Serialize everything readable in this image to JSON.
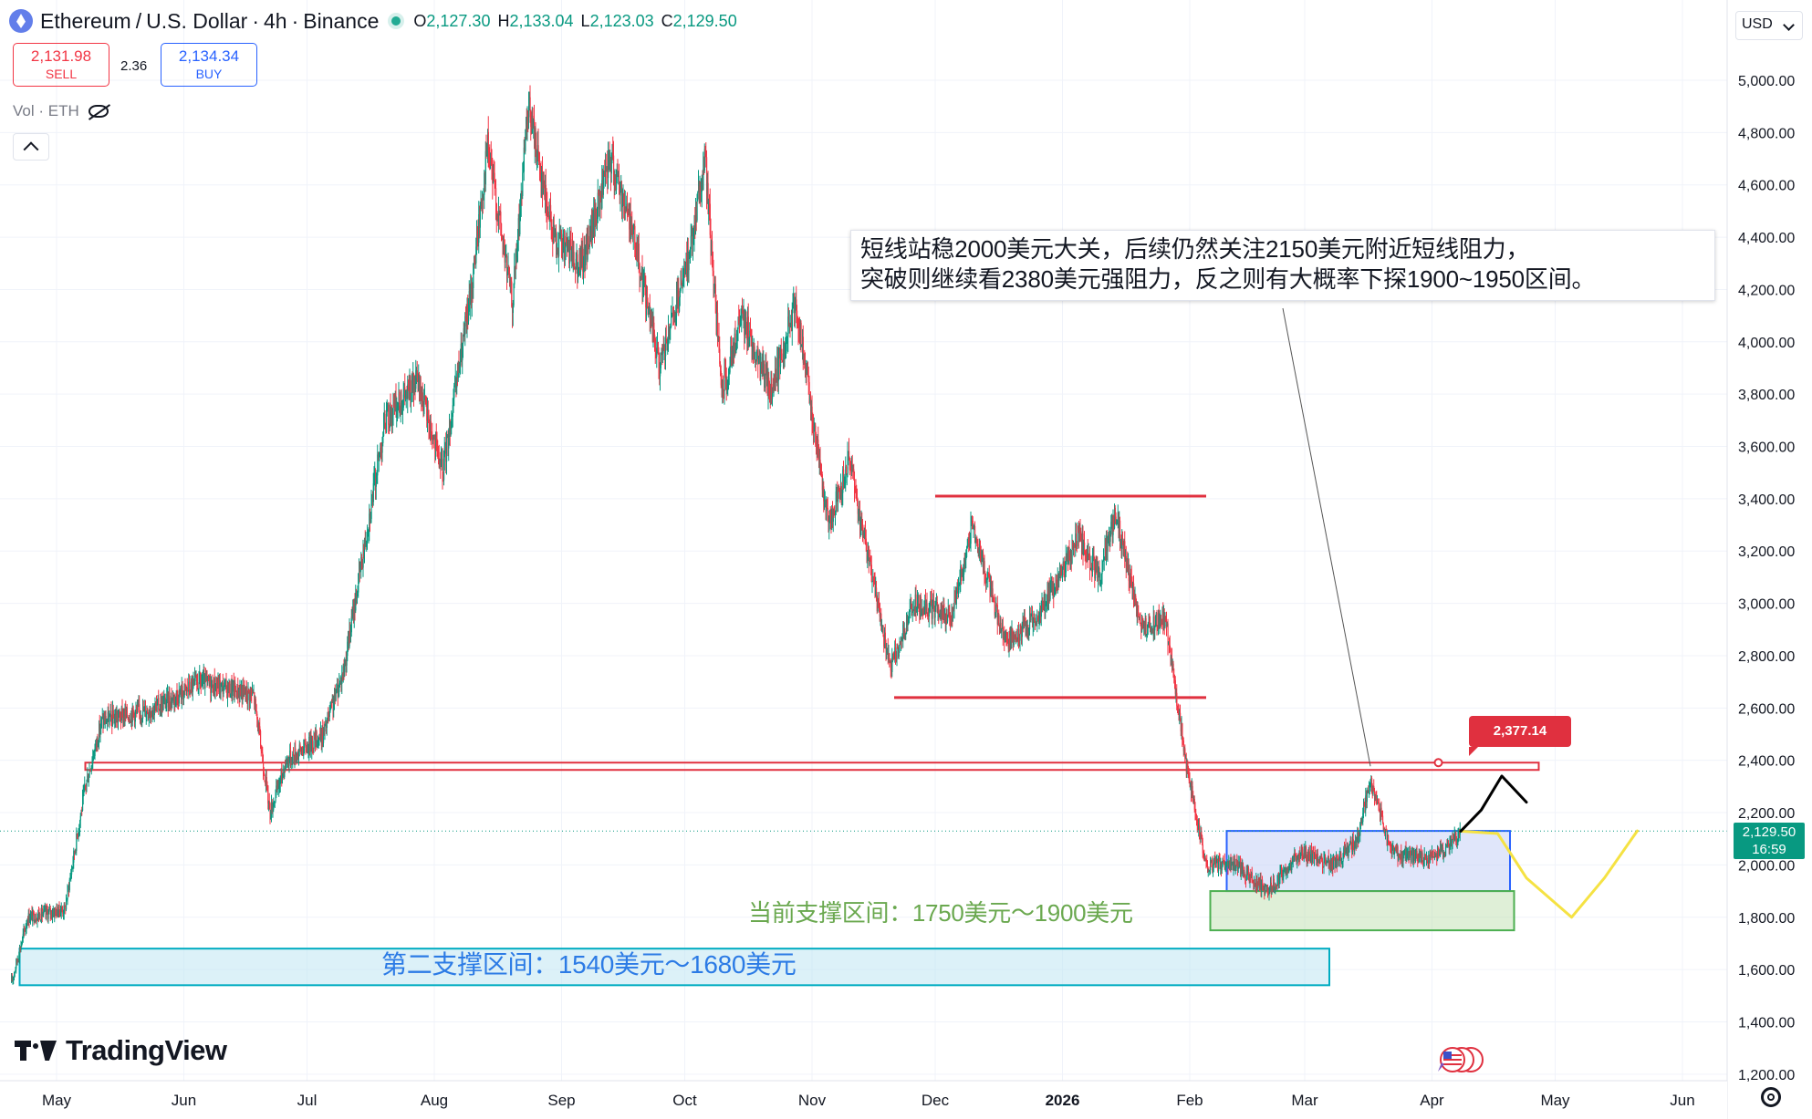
{
  "header": {
    "symbol": "Ethereum",
    "quote": "U.S. Dollar",
    "interval": "4h",
    "exchange": "Binance",
    "ohlc": {
      "o_label": "O",
      "o": "2,127.30",
      "h_label": "H",
      "h": "2,133.04",
      "l_label": "L",
      "l": "2,123.03",
      "c_label": "C",
      "c": "2,129.50"
    }
  },
  "trade": {
    "sell_price": "2,131.98",
    "sell_label": "SELL",
    "spread": "2.36",
    "buy_price": "2,134.34",
    "buy_label": "BUY"
  },
  "volume_legend": "Vol · ETH",
  "currency": "USD",
  "current_price": {
    "value": "2,129.50",
    "countdown": "16:59",
    "color": "#089981"
  },
  "brand": "TradingView",
  "annotations": {
    "note_line1": "短线站稳2000美元大关，后续仍然关注2150美元附近短线阻力，",
    "note_line2": "突破则继续看2380美元强阻力，反之则有大概率下探1900~1950区间。",
    "callout": "2,377.14",
    "support1": "当前支撑区间：1750美元～1900美元",
    "support2": "第二支撑区间：1540美元～1680美元"
  },
  "colors": {
    "up": "#089981",
    "down": "#f23645",
    "resistance": "#e0303f",
    "support1_zone": "#b7dba6",
    "support2_zone": "#bfe6f2",
    "range_box": "#c7d2f5",
    "projection": "#f5e243",
    "bullish_path": "#000000"
  },
  "chart_data": {
    "type": "candlestick",
    "y_axis_ticks": [
      "5,000.00",
      "4,800.00",
      "4,600.00",
      "4,400.00",
      "4,200.00",
      "4,000.00",
      "3,800.00",
      "3,600.00",
      "3,400.00",
      "3,200.00",
      "3,000.00",
      "2,800.00",
      "2,600.00",
      "2,400.00",
      "2,200.00",
      "2,000.00",
      "1,800.00",
      "1,600.00",
      "1,400.00",
      "1,200.00"
    ],
    "x_axis_ticks": [
      "May",
      "Jun",
      "Jul",
      "Aug",
      "Sep",
      "Oct",
      "Nov",
      "Dec",
      "2026",
      "Feb",
      "Mar",
      "Apr",
      "May",
      "Jun"
    ],
    "ylim": [
      1200,
      5050
    ],
    "price_path": [
      [
        "2025-04-20",
        1550
      ],
      [
        "2025-04-24",
        1800
      ],
      [
        "2025-05-03",
        1830
      ],
      [
        "2025-05-08",
        2300
      ],
      [
        "2025-05-12",
        2550
      ],
      [
        "2025-05-25",
        2600
      ],
      [
        "2025-06-05",
        2700
      ],
      [
        "2025-06-18",
        2650
      ],
      [
        "2025-06-22",
        2200
      ],
      [
        "2025-06-26",
        2400
      ],
      [
        "2025-07-05",
        2500
      ],
      [
        "2025-07-10",
        2750
      ],
      [
        "2025-07-20",
        3700
      ],
      [
        "2025-07-28",
        3850
      ],
      [
        "2025-08-03",
        3500
      ],
      [
        "2025-08-10",
        4200
      ],
      [
        "2025-08-14",
        4750
      ],
      [
        "2025-08-20",
        4150
      ],
      [
        "2025-08-24",
        4900
      ],
      [
        "2025-08-30",
        4400
      ],
      [
        "2025-09-06",
        4300
      ],
      [
        "2025-09-13",
        4700
      ],
      [
        "2025-09-18",
        4450
      ],
      [
        "2025-09-25",
        3900
      ],
      [
        "2025-10-01",
        4250
      ],
      [
        "2025-10-06",
        4700
      ],
      [
        "2025-10-10",
        3800
      ],
      [
        "2025-10-15",
        4100
      ],
      [
        "2025-10-22",
        3800
      ],
      [
        "2025-10-28",
        4150
      ],
      [
        "2025-11-05",
        3300
      ],
      [
        "2025-11-10",
        3550
      ],
      [
        "2025-11-20",
        2750
      ],
      [
        "2025-11-26",
        3000
      ],
      [
        "2025-12-05",
        2950
      ],
      [
        "2025-12-10",
        3300
      ],
      [
        "2025-12-18",
        2850
      ],
      [
        "2025-12-26",
        2950
      ],
      [
        "2026-01-05",
        3250
      ],
      [
        "2026-01-10",
        3100
      ],
      [
        "2026-01-14",
        3350
      ],
      [
        "2026-01-20",
        2900
      ],
      [
        "2026-01-26",
        2950
      ],
      [
        "2026-01-31",
        2400
      ],
      [
        "2026-02-05",
        2000
      ],
      [
        "2026-02-12",
        2000
      ],
      [
        "2026-02-20",
        1900
      ],
      [
        "2026-02-28",
        2050
      ],
      [
        "2026-03-08",
        2000
      ],
      [
        "2026-03-14",
        2100
      ],
      [
        "2026-03-17",
        2330
      ],
      [
        "2026-03-22",
        2050
      ],
      [
        "2026-03-30",
        2020
      ],
      [
        "2026-04-05",
        2060
      ],
      [
        "2026-04-08",
        2129.5
      ]
    ],
    "levels": [
      {
        "name": "2380 resistance",
        "price": 2377.14,
        "from": "2025-05-08",
        "to": "2026-04-27"
      },
      {
        "name": "upper range",
        "price": 3410,
        "from": "2025-12-01",
        "to": "2026-02-05"
      },
      {
        "name": "lower range",
        "price": 2640,
        "from": "2025-11-21",
        "to": "2026-02-05"
      }
    ],
    "zones": [
      {
        "name": "range box",
        "low": 1900,
        "high": 2130,
        "from": "2026-02-10",
        "to": "2026-04-20"
      },
      {
        "name": "current support",
        "low": 1750,
        "high": 1900,
        "from": "2026-02-06",
        "to": "2026-04-21"
      },
      {
        "name": "second support",
        "low": 1540,
        "high": 1680,
        "from": "2025-04-22",
        "to": "2026-03-07"
      }
    ],
    "projections": {
      "bullish": [
        [
          "2026-04-08",
          2129
        ],
        [
          "2026-04-13",
          2210
        ],
        [
          "2026-04-18",
          2340
        ],
        [
          "2026-04-24",
          2240
        ]
      ],
      "bearish": [
        [
          "2026-04-08",
          2129
        ],
        [
          "2026-04-17",
          2120
        ],
        [
          "2026-04-24",
          1950
        ],
        [
          "2026-05-05",
          1800
        ],
        [
          "2026-05-13",
          1950
        ],
        [
          "2026-05-21",
          2130
        ]
      ]
    }
  }
}
